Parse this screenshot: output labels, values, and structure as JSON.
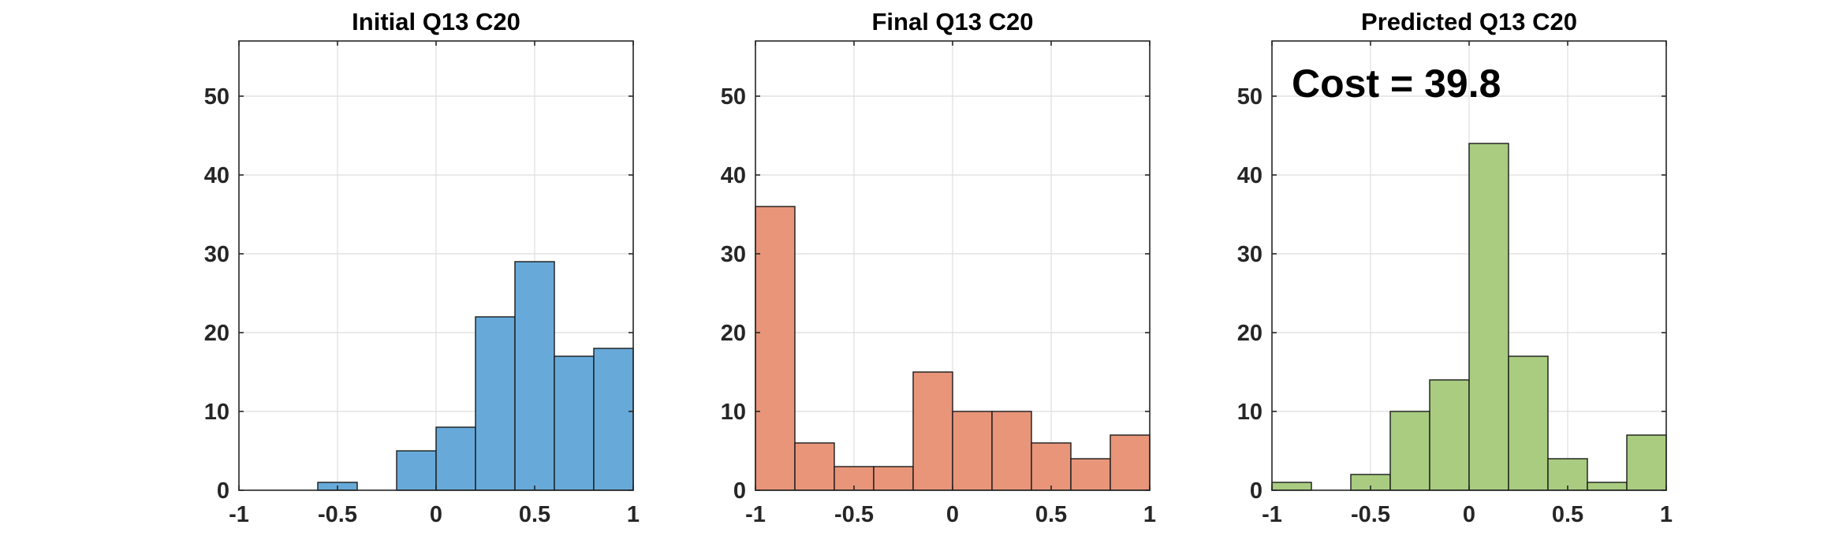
{
  "chart_data": [
    {
      "type": "bar",
      "title": "Initial Q13 C20",
      "xlim": [
        -1,
        1
      ],
      "ylim": [
        0,
        57
      ],
      "grid": true,
      "bin_edges": [
        -1,
        -0.8,
        -0.6,
        -0.4,
        -0.2,
        0,
        0.2,
        0.4,
        0.6,
        0.8,
        1
      ],
      "values": [
        0,
        0,
        1,
        0,
        5,
        8,
        22,
        29,
        17,
        18
      ],
      "xticks": [
        -1,
        -0.5,
        0,
        0.5,
        1
      ],
      "xtick_labels": [
        "-1",
        "-0.5",
        "0",
        "0.5",
        "1"
      ],
      "yticks": [
        0,
        10,
        20,
        30,
        40,
        50
      ],
      "ytick_labels": [
        "0",
        "10",
        "20",
        "30",
        "40",
        "50"
      ],
      "color": "#67aad9",
      "annotation": ""
    },
    {
      "type": "bar",
      "title": "Final Q13 C20",
      "xlim": [
        -1,
        1
      ],
      "ylim": [
        0,
        57
      ],
      "grid": true,
      "bin_edges": [
        -1,
        -0.8,
        -0.6,
        -0.4,
        -0.2,
        0,
        0.2,
        0.4,
        0.6,
        0.8,
        1
      ],
      "values": [
        36,
        6,
        3,
        3,
        15,
        10,
        10,
        6,
        4,
        7
      ],
      "xticks": [
        -1,
        -0.5,
        0,
        0.5,
        1
      ],
      "xtick_labels": [
        "-1",
        "-0.5",
        "0",
        "0.5",
        "1"
      ],
      "yticks": [
        0,
        10,
        20,
        30,
        40,
        50
      ],
      "ytick_labels": [
        "0",
        "10",
        "20",
        "30",
        "40",
        "50"
      ],
      "color": "#e8957a",
      "annotation": ""
    },
    {
      "type": "bar",
      "title": "Predicted Q13 C20",
      "xlim": [
        -1,
        1
      ],
      "ylim": [
        0,
        57
      ],
      "grid": true,
      "bin_edges": [
        -1,
        -0.8,
        -0.6,
        -0.4,
        -0.2,
        0,
        0.2,
        0.4,
        0.6,
        0.8,
        1
      ],
      "values": [
        1,
        0,
        2,
        10,
        14,
        44,
        17,
        4,
        1,
        7
      ],
      "xticks": [
        -1,
        -0.5,
        0,
        0.5,
        1
      ],
      "xtick_labels": [
        "-1",
        "-0.5",
        "0",
        "0.5",
        "1"
      ],
      "yticks": [
        0,
        10,
        20,
        30,
        40,
        50
      ],
      "ytick_labels": [
        "0",
        "10",
        "20",
        "30",
        "40",
        "50"
      ],
      "color": "#a9cc80",
      "annotation": "Cost = 39.8"
    }
  ]
}
